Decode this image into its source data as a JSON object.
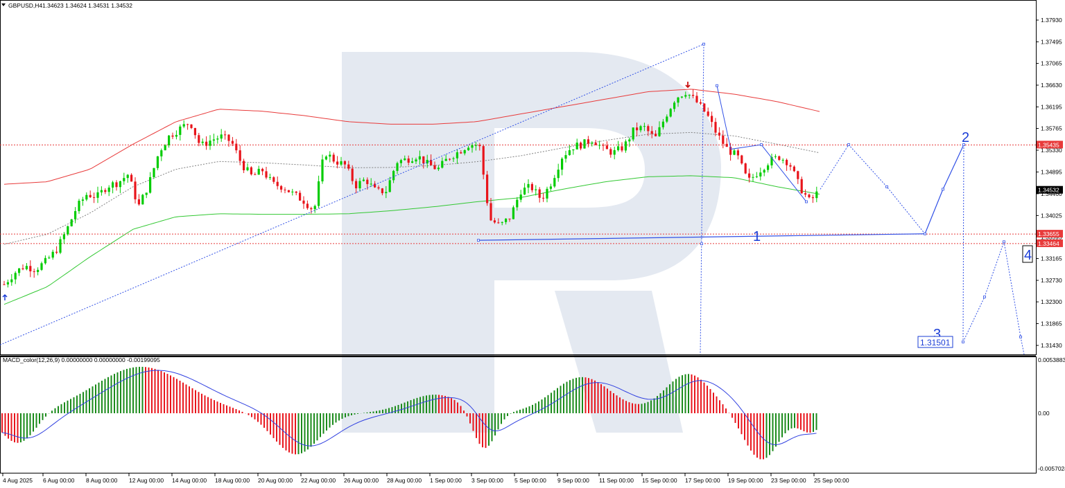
{
  "header": {
    "symbol_label": "GBPUSD,H4",
    "ohlc_text": "1.34623 1.34624 1.34531 1.34532"
  },
  "macd": {
    "label": "MACD_color(12,26,9) 0.00000000 0.00000000 -0.00199095",
    "scale_top": "0.0053883",
    "scale_zero": "0.00",
    "scale_bottom": "-0.0057024"
  },
  "colors": {
    "bull_candle": "#00cc00",
    "bear_candle": "#e8141b",
    "upper_band": "#e83a3a",
    "lower_band": "#32c832",
    "middle_band": "#808080",
    "wave_line": "#3050e6",
    "level_line": "#e83a3a",
    "macd_pos": "#1a8a1a",
    "macd_neg": "#e8141b",
    "macd_signal": "#3040e0",
    "watermark": "#dfe5ef"
  },
  "price_axis": {
    "ticks": [
      "1.37930",
      "1.37495",
      "1.37065",
      "1.36630",
      "1.36195",
      "1.35765",
      "1.35330",
      "1.34895",
      "1.34460",
      "1.34025",
      "1.33595",
      "1.33165",
      "1.32730",
      "1.32300",
      "1.31865",
      "1.31430"
    ],
    "current_price_label": "1.34532",
    "level_labels": [
      "1.35435",
      "1.33655",
      "1.33464"
    ]
  },
  "time_axis": {
    "labels": [
      "4 Aug 2025",
      "6 Aug 00:00",
      "8 Aug 00:00",
      "12 Aug 00:00",
      "14 Aug 00:00",
      "18 Aug 00:00",
      "20 Aug 00:00",
      "22 Aug 00:00",
      "26 Aug 00:00",
      "28 Aug 00:00",
      "1 Sep 00:00",
      "3 Sep 00:00",
      "5 Sep 00:00",
      "9 Sep 00:00",
      "11 Sep 00:00",
      "15 Sep 00:00",
      "17 Sep 00:00",
      "19 Sep 00:00",
      "23 Sep 00:00",
      "25 Sep 00:00"
    ]
  },
  "annotations": {
    "wave_labels": [
      "1",
      "2",
      "3",
      "4"
    ],
    "target_price_box": "1.31501"
  },
  "chart_data": {
    "type": "candlestick",
    "symbol": "GBPUSD",
    "timeframe": "H4",
    "ohlc_current": {
      "open": 1.34623,
      "high": 1.34624,
      "low": 1.34531,
      "close": 1.34532
    },
    "price_range": [
      1.3115,
      1.3842
    ],
    "horizontal_levels": [
      1.35435,
      1.33655,
      1.33464
    ],
    "target_level": 1.31501,
    "closes_sampled": [
      1.3265,
      1.3288,
      1.3302,
      1.3295,
      1.331,
      1.3332,
      1.3371,
      1.3418,
      1.3445,
      1.344,
      1.3462,
      1.3468,
      1.3485,
      1.342,
      1.3465,
      1.353,
      1.3562,
      1.3576,
      1.359,
      1.3541,
      1.3553,
      1.356,
      1.355,
      1.3505,
      1.348,
      1.3493,
      1.3465,
      1.346,
      1.3445,
      1.3432,
      1.3412,
      1.353,
      1.3512,
      1.3503,
      1.3462,
      1.3475,
      1.345,
      1.3452,
      1.351,
      1.3515,
      1.3522,
      1.3505,
      1.3495,
      1.3518,
      1.353,
      1.3545,
      1.3543,
      1.3395,
      1.3382,
      1.34,
      1.3452,
      1.346,
      1.3435,
      1.347,
      1.352,
      1.354,
      1.3545,
      1.3555,
      1.3535,
      1.3528,
      1.354,
      1.3575,
      1.3578,
      1.3555,
      1.36,
      1.3638,
      1.365,
      1.363,
      1.3605,
      1.3565,
      1.3535,
      1.352,
      1.347,
      1.349,
      1.351,
      1.352,
      1.3508,
      1.346,
      1.343,
      1.3455
    ],
    "upper_band_sampled": [
      1.3465,
      1.347,
      1.3495,
      1.3545,
      1.359,
      1.3615,
      1.3611,
      1.3602,
      1.359,
      1.3585,
      1.3585,
      1.359,
      1.3605,
      1.362,
      1.3635,
      1.365,
      1.3655,
      1.3645,
      1.363,
      1.361
    ],
    "lower_band_sampled": [
      1.3225,
      1.326,
      1.332,
      1.3375,
      1.34,
      1.3406,
      1.3405,
      1.3405,
      1.3406,
      1.3412,
      1.342,
      1.343,
      1.3438,
      1.3455,
      1.347,
      1.348,
      1.3482,
      1.3478,
      1.346,
      1.3445
    ]
  }
}
